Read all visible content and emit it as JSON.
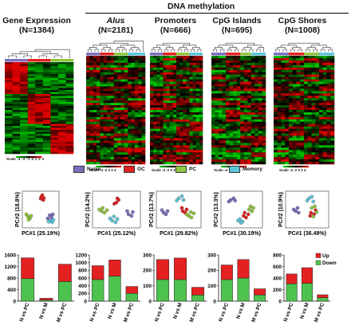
{
  "section_title": "DNA methylation",
  "panels": [
    {
      "title": "Gene Expression",
      "title_italic": false,
      "n": "(N=1384)"
    },
    {
      "title": "Alus",
      "title_italic": true,
      "n": "(N=2181)"
    },
    {
      "title": "Promoters",
      "title_italic": false,
      "n": "(N=666)"
    },
    {
      "title": "CpG Islands",
      "title_italic": false,
      "n": "(N=695)"
    },
    {
      "title": "CpG Shores",
      "title_italic": false,
      "n": "(N=1008)"
    }
  ],
  "scale": {
    "label": "Scale",
    "ticks_expr": "-3 -2 -1 0 1 2 3",
    "ticks_meth": "-4 -2 0 2 4"
  },
  "legend": [
    {
      "label": "Naive",
      "color": "#7b6fc0"
    },
    {
      "label": "GC",
      "color": "#e42121"
    },
    {
      "label": "PC",
      "color": "#8fc73e"
    },
    {
      "label": "Memory",
      "color": "#5cc6dc"
    }
  ],
  "heatmap_colors": {
    "low": "#00c000",
    "mid": "#000000",
    "high": "#e00000"
  },
  "chart_data": [
    {
      "type": "scatter",
      "xlabel": "PC#1 (25.19%)",
      "ylabel": "PC#2 (18.8%)",
      "series": [
        {
          "group": "Naive",
          "points": [
            [
              0.78,
              0.32
            ],
            [
              0.84,
              0.25
            ],
            [
              0.72,
              0.22
            ],
            [
              0.88,
              0.35
            ]
          ]
        },
        {
          "group": "GC",
          "points": [
            [
              0.52,
              0.9
            ],
            [
              0.58,
              0.8
            ],
            [
              0.55,
              0.95
            ],
            [
              0.6,
              0.86
            ],
            [
              0.5,
              0.84
            ]
          ]
        },
        {
          "group": "PC",
          "points": [
            [
              0.1,
              0.28
            ],
            [
              0.16,
              0.22
            ],
            [
              0.05,
              0.35
            ],
            [
              0.2,
              0.3
            ],
            [
              0.12,
              0.18
            ]
          ]
        },
        {
          "group": "Memory",
          "points": [
            [
              0.8,
              0.15
            ],
            [
              0.86,
              0.1
            ],
            [
              0.9,
              0.18
            ],
            [
              0.75,
              0.12
            ]
          ]
        }
      ]
    },
    {
      "type": "scatter",
      "xlabel": "PC#1 (25.12%)",
      "ylabel": "PC#2 (14.2%)",
      "series": [
        {
          "group": "Naive",
          "points": [
            [
              0.78,
              0.35
            ],
            [
              0.85,
              0.3
            ],
            [
              0.88,
              0.42
            ],
            [
              0.75,
              0.45
            ]
          ]
        },
        {
          "group": "GC",
          "points": [
            [
              0.5,
              0.72
            ],
            [
              0.55,
              0.8
            ],
            [
              0.45,
              0.68
            ],
            [
              0.52,
              0.85
            ]
          ]
        },
        {
          "group": "PC",
          "points": [
            [
              0.15,
              0.45
            ],
            [
              0.22,
              0.4
            ],
            [
              0.18,
              0.55
            ],
            [
              0.28,
              0.48
            ],
            [
              0.1,
              0.5
            ]
          ]
        },
        {
          "group": "Memory",
          "points": [
            [
              0.4,
              0.15
            ],
            [
              0.48,
              0.1
            ],
            [
              0.35,
              0.22
            ],
            [
              0.52,
              0.2
            ],
            [
              0.44,
              0.28
            ]
          ]
        }
      ]
    },
    {
      "type": "scatter",
      "xlabel": "PC#1 (29.82%)",
      "ylabel": "PC#2 (13.7%)",
      "series": [
        {
          "group": "Naive",
          "points": [
            [
              0.12,
              0.4
            ],
            [
              0.18,
              0.35
            ],
            [
              0.08,
              0.48
            ],
            [
              0.22,
              0.45
            ]
          ]
        },
        {
          "group": "GC",
          "points": [
            [
              0.6,
              0.45
            ],
            [
              0.66,
              0.4
            ],
            [
              0.58,
              0.55
            ],
            [
              0.7,
              0.5
            ]
          ]
        },
        {
          "group": "PC",
          "points": [
            [
              0.75,
              0.3
            ],
            [
              0.82,
              0.25
            ],
            [
              0.88,
              0.38
            ],
            [
              0.8,
              0.42
            ],
            [
              0.7,
              0.35
            ]
          ]
        },
        {
          "group": "Memory",
          "points": [
            [
              0.5,
              0.85
            ],
            [
              0.58,
              0.92
            ],
            [
              0.45,
              0.78
            ],
            [
              0.62,
              0.8
            ]
          ]
        }
      ]
    },
    {
      "type": "scatter",
      "xlabel": "PC#1 (30.19%)",
      "ylabel": "PC#2 (13.3%)",
      "series": [
        {
          "group": "Naive",
          "points": [
            [
              0.2,
              0.8
            ],
            [
              0.28,
              0.85
            ],
            [
              0.15,
              0.75
            ],
            [
              0.32,
              0.78
            ]
          ]
        },
        {
          "group": "GC",
          "points": [
            [
              0.55,
              0.3
            ],
            [
              0.62,
              0.25
            ],
            [
              0.68,
              0.35
            ],
            [
              0.58,
              0.4
            ]
          ]
        },
        {
          "group": "PC",
          "points": [
            [
              0.7,
              0.5
            ],
            [
              0.78,
              0.45
            ],
            [
              0.82,
              0.55
            ],
            [
              0.74,
              0.6
            ]
          ]
        },
        {
          "group": "Memory",
          "points": [
            [
              0.45,
              0.2
            ],
            [
              0.52,
              0.12
            ],
            [
              0.4,
              0.15
            ],
            [
              0.48,
              0.08
            ]
          ]
        }
      ]
    },
    {
      "type": "scatter",
      "xlabel": "PC#1 (36.49%)",
      "ylabel": "PC#2 (10.9%)",
      "series": [
        {
          "group": "Naive",
          "points": [
            [
              0.2,
              0.45
            ],
            [
              0.28,
              0.4
            ],
            [
              0.15,
              0.5
            ],
            [
              0.25,
              0.55
            ]
          ]
        },
        {
          "group": "GC",
          "points": [
            [
              0.6,
              0.4
            ],
            [
              0.68,
              0.35
            ],
            [
              0.72,
              0.48
            ],
            [
              0.58,
              0.3
            ]
          ]
        },
        {
          "group": "PC",
          "points": [
            [
              0.62,
              0.55
            ],
            [
              0.7,
              0.6
            ],
            [
              0.66,
              0.28
            ],
            [
              0.75,
              0.42
            ]
          ]
        },
        {
          "group": "Memory",
          "points": [
            [
              0.55,
              0.85
            ],
            [
              0.62,
              0.9
            ],
            [
              0.5,
              0.78
            ],
            [
              0.66,
              0.75
            ]
          ]
        }
      ]
    },
    {
      "type": "bar",
      "stacked": true,
      "categories": [
        "N vs PC",
        "N vs M",
        "M vs PC"
      ],
      "ylim": [
        0,
        1600
      ],
      "yticks": [
        0,
        400,
        800,
        1200,
        1600
      ],
      "series": [
        {
          "name": "Down",
          "values": [
            780,
            40,
            680
          ]
        },
        {
          "name": "Up",
          "values": [
            720,
            60,
            600
          ]
        }
      ]
    },
    {
      "type": "bar",
      "stacked": true,
      "categories": [
        "N vs PC",
        "N vs M",
        "M vs PC"
      ],
      "ylim": [
        0,
        1200
      ],
      "yticks": [
        0,
        200,
        400,
        600,
        800,
        1000,
        1200
      ],
      "series": [
        {
          "name": "Down",
          "values": [
            560,
            650,
            200
          ]
        },
        {
          "name": "Up",
          "values": [
            360,
            420,
            180
          ]
        }
      ]
    },
    {
      "type": "bar",
      "stacked": true,
      "categories": [
        "N vs PC",
        "N vs M",
        "M vs PC"
      ],
      "ylim": [
        0,
        300
      ],
      "yticks": [
        0,
        100,
        200,
        300
      ],
      "series": [
        {
          "name": "Down",
          "values": [
            140,
            140,
            40
          ]
        },
        {
          "name": "Up",
          "values": [
            130,
            140,
            50
          ]
        }
      ]
    },
    {
      "type": "bar",
      "stacked": true,
      "categories": [
        "N vs PC",
        "N vs M",
        "M vs PC"
      ],
      "ylim": [
        0,
        300
      ],
      "yticks": [
        0,
        100,
        200,
        300
      ],
      "series": [
        {
          "name": "Down",
          "values": [
            140,
            150,
            40
          ]
        },
        {
          "name": "Up",
          "values": [
            95,
            120,
            40
          ]
        }
      ]
    },
    {
      "type": "bar",
      "stacked": true,
      "categories": [
        "N vs PC",
        "N vs M",
        "M vs PC"
      ],
      "ylim": [
        0,
        800
      ],
      "yticks": [
        0,
        200,
        400,
        600,
        800
      ],
      "series": [
        {
          "name": "Down",
          "values": [
            300,
            310,
            60
          ]
        },
        {
          "name": "Up",
          "values": [
            170,
            270,
            50
          ]
        }
      ],
      "legend": [
        "Up",
        "Down"
      ]
    }
  ]
}
